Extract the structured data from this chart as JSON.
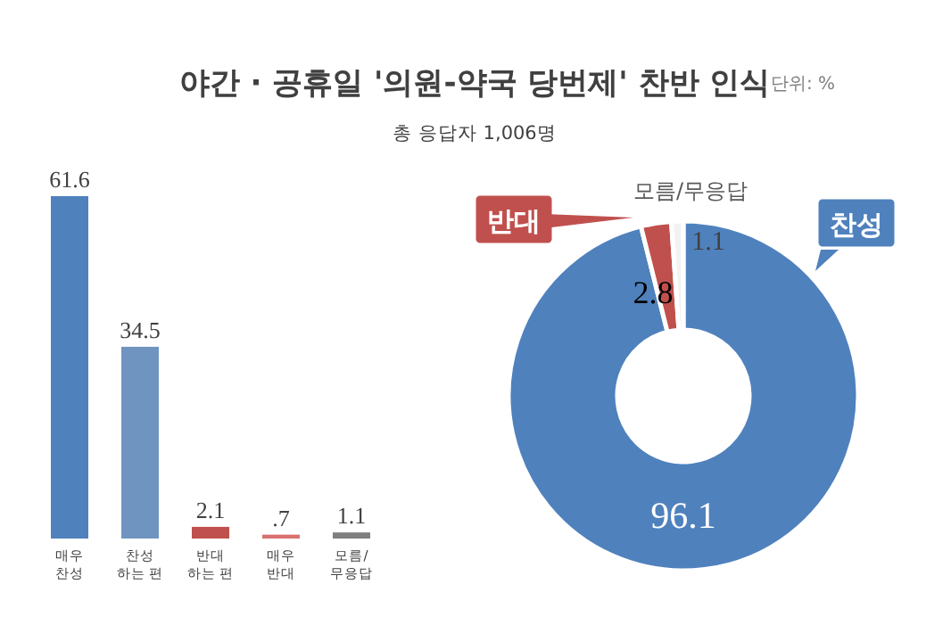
{
  "chart_data": [
    {
      "type": "bar",
      "title": "야간 · 공휴일 '의원-약국 당번제' 찬반 인식",
      "subtitle": "총 응답자 1,006명",
      "annotations": [
        "단위: %"
      ],
      "categories": [
        "매우\n찬성",
        "찬성\n하는 편",
        "반대\n하는 편",
        "매우\n반대",
        "모름/\n무응답"
      ],
      "values": [
        61.6,
        34.5,
        2.1,
        0.7,
        1.1
      ],
      "colors": [
        "#4f81bd",
        "#7094c0",
        "#c0504d",
        "#d9716e",
        "#7f7f7f"
      ],
      "value_labels": [
        "61.6",
        "34.5",
        "2.1",
        ".7",
        "1.1"
      ]
    },
    {
      "type": "donut",
      "categories": [
        "찬성",
        "반대",
        "모름/무응답"
      ],
      "values": [
        96.1,
        2.8,
        1.1
      ],
      "colors": [
        "#4f81bd",
        "#c0504d",
        "#f2f2f2"
      ],
      "data_labels": true
    }
  ]
}
